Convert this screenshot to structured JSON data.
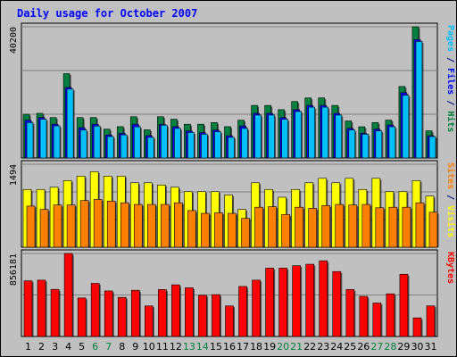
{
  "chart_data": {
    "type": "bar",
    "title": "Daily usage for October 2007",
    "categories": [
      "1",
      "2",
      "3",
      "4",
      "5",
      "6",
      "7",
      "8",
      "9",
      "10",
      "11",
      "12",
      "13",
      "14",
      "15",
      "16",
      "17",
      "18",
      "19",
      "20",
      "21",
      "22",
      "23",
      "24",
      "25",
      "26",
      "27",
      "28",
      "29",
      "30",
      "31"
    ],
    "weekend_days": [
      "6",
      "7",
      "13",
      "14",
      "20",
      "21",
      "27",
      "28"
    ],
    "panels": [
      {
        "id": "top",
        "ylim": [
          0,
          40200
        ],
        "max_label": "40200",
        "gridlines": 3,
        "side_labels": [
          {
            "text": "Pages",
            "color": "#00C0FF"
          },
          {
            "text": " / ",
            "color": "#000080"
          },
          {
            "text": "Files",
            "color": "#0000FF"
          },
          {
            "text": " / ",
            "color": "#000080"
          },
          {
            "text": "Hits",
            "color": "#008040"
          }
        ],
        "series": [
          {
            "name": "Hits",
            "color": "#008040",
            "values": [
              13390,
              13670,
              12380,
              25830,
              12380,
              12380,
              8830,
              9590,
              12640,
              8620,
              12640,
              11870,
              10330,
              10340,
              10850,
              9590,
              11570,
              16100,
              16100,
              14800,
              17300,
              18400,
              18400,
              16100,
              11350,
              9560,
              10850,
              11600,
              21900,
              40200,
              8320
            ]
          },
          {
            "name": "Files",
            "color": "#0000FF",
            "values": [
              11570,
              12380,
              10330,
              21620,
              9290,
              10330,
              7070,
              7560,
              10330,
              6860,
              10330,
              9590,
              8300,
              7770,
              8580,
              6830,
              9800,
              13670,
              13670,
              12380,
              14800,
              16100,
              16100,
              13670,
              9080,
              7560,
              8830,
              10090,
              20000,
              36300,
              6830
            ]
          },
          {
            "name": "Pages",
            "color": "#00C0FF",
            "values": [
              10850,
              11870,
              9830,
              21100,
              8580,
              9800,
              6560,
              7070,
              9560,
              6310,
              10060,
              9060,
              7810,
              7280,
              8040,
              6310,
              9060,
              13140,
              13140,
              11830,
              14250,
              15560,
              15560,
              13140,
              8580,
              7280,
              8300,
              9560,
              19200,
              35700,
              6560
            ]
          }
        ]
      },
      {
        "id": "middle",
        "ylim": [
          0,
          1494
        ],
        "max_label": "1494",
        "gridlines": 3,
        "side_labels": [
          {
            "text": "Sites",
            "color": "#FF8000"
          },
          {
            "text": " / ",
            "color": "#000080"
          },
          {
            "text": "Visits",
            "color": "#FFFF00"
          }
        ],
        "series": [
          {
            "name": "Visits",
            "color": "#FFFF00",
            "values": [
              1040,
              1040,
              1080,
              1200,
              1280,
              1360,
              1280,
              1280,
              1160,
              1160,
              1120,
              1080,
              1000,
              1000,
              1000,
              940,
              680,
              1160,
              1040,
              900,
              1040,
              1160,
              1240,
              1160,
              1240,
              1040,
              1240,
              1000,
              1000,
              1200,
              920
            ]
          },
          {
            "name": "Sites",
            "color": "#FF8000",
            "values": [
              740,
              680,
              760,
              760,
              840,
              860,
              830,
              800,
              770,
              770,
              770,
              800,
              660,
              610,
              620,
              610,
              520,
              720,
              730,
              590,
              720,
              700,
              750,
              770,
              760,
              770,
              710,
              720,
              720,
              800,
              630
            ]
          }
        ]
      },
      {
        "id": "bottom",
        "ylim": [
          0,
          856181
        ],
        "max_label": "856181",
        "gridlines": 2,
        "side_labels": [
          {
            "text": "KBytes",
            "color": "#FF0000"
          }
        ],
        "series": [
          {
            "name": "KBytes",
            "color": "#FF0000",
            "values": [
              574000,
              581000,
              486000,
              856181,
              397000,
              548000,
              470000,
              403000,
              477000,
              315000,
              484000,
              533000,
              502000,
              425000,
              432000,
              315000,
              516000,
              581000,
              705000,
              705000,
              730000,
              745000,
              781000,
              670000,
              484000,
              414000,
              345000,
              440000,
              642000,
              192000,
              315000
            ]
          }
        ]
      }
    ]
  }
}
